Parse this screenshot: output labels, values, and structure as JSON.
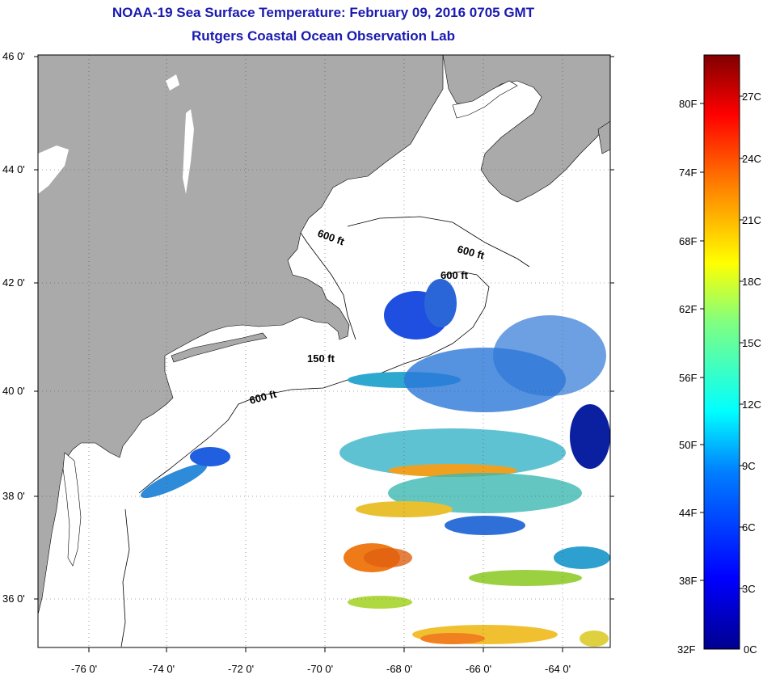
{
  "title": "NOAA-19 Sea Surface Temperature:  February 09, 2016 0705 GMT",
  "subtitle": "Rutgers Coastal Ocean Observation Lab",
  "lat_labels": [
    "46 0'",
    "44 0'",
    "42 0'",
    "40 0'",
    "38 0'",
    "36 0'"
  ],
  "lon_labels": [
    "-76 0'",
    "-74 0'",
    "-72 0'",
    "-70 0'",
    "-68 0'",
    "-66 0'",
    "-64 0'"
  ],
  "contour_labels": [
    "600 ft",
    "600 ft",
    "600 ft",
    "150 ft",
    "600 ft"
  ],
  "colorbar": {
    "fahrenheit": [
      "80F",
      "74F",
      "68F",
      "62F",
      "56F",
      "50F",
      "44F",
      "38F",
      "32F"
    ],
    "celsius": [
      "27C",
      "24C",
      "21C",
      "18C",
      "15C",
      "12C",
      "9C",
      "6C",
      "3C",
      "0C"
    ]
  },
  "colors": {
    "title": "#1a1ab0",
    "land": "#aaaaaa",
    "ocean": "#ffffff"
  }
}
